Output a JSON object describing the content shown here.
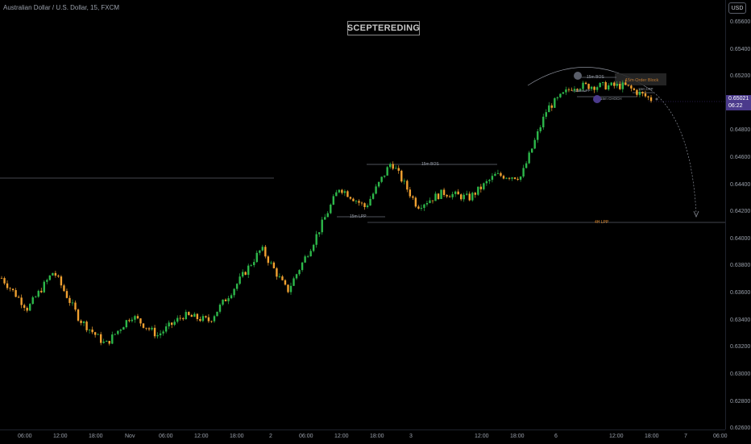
{
  "header": {
    "symbol_title": "Australian Dollar / U.S. Dollar, 15, FXCM",
    "watermark": "SCEPTEREDING",
    "currency_button": "USD"
  },
  "price_axis": {
    "ticks": [
      "0.65600",
      "0.65400",
      "0.65200",
      "0.65000",
      "0.64800",
      "0.64600",
      "0.64400",
      "0.64200",
      "0.64000",
      "0.63800",
      "0.63600",
      "0.63400",
      "0.63200",
      "0.63000",
      "0.62800",
      "0.62600"
    ],
    "current_price": "0.65021",
    "countdown": "06:22"
  },
  "time_axis": {
    "ticks": [
      "06:00",
      "12:00",
      "18:00",
      "Nov",
      "06:00",
      "12:00",
      "18:00",
      "2",
      "06:00",
      "12:00",
      "18:00",
      "3",
      "12:00",
      "18:00",
      "6",
      "12:00",
      "18:00",
      "7",
      "06:00"
    ]
  },
  "annotations": {
    "bos_middle": "15m BOS",
    "lpp_middle": "15m LPP",
    "lpp_4h": "4H LPP",
    "bos_top": "15m BOS",
    "order_block": "15m Order Block",
    "lpp_top_left": "15m LPP",
    "choch": "15m CHOCH",
    "lpp_top_right": "15m LPP"
  },
  "colors": {
    "background": "#000000",
    "up_candle": "#2db84a",
    "down_candle": "#f0a030",
    "badge": "#4b3a8c",
    "lpp_4h": "#e08a2c",
    "order_block": "#c07a30"
  },
  "chart_data": {
    "type": "candlestick",
    "y_range": [
      0.6255,
      0.6568
    ],
    "approx_close_path": [
      [
        "Oct 31 03:00",
        0.6368
      ],
      [
        "Oct 31 08:00",
        0.6345
      ],
      [
        "Oct 31 10:00",
        0.6373
      ],
      [
        "Oct 31 16:00",
        0.6337
      ],
      [
        "Oct 31 18:00",
        0.6318
      ],
      [
        "Nov 1 00:00",
        0.634
      ],
      [
        "Nov 1 06:00",
        0.6325
      ],
      [
        "Nov 1 10:00",
        0.634
      ],
      [
        "Nov 1 16:00",
        0.6336
      ],
      [
        "Nov 1 20:00",
        0.6362
      ],
      [
        "Nov 1 22:00",
        0.639
      ],
      [
        "Nov 2 00:00",
        0.6358
      ],
      [
        "Nov 2 04:00",
        0.6395
      ],
      [
        "Nov 2 08:00",
        0.6436
      ],
      [
        "Nov 2 12:00",
        0.6421
      ],
      [
        "Nov 2 16:00",
        0.6455
      ],
      [
        "Nov 2 20:00",
        0.6422
      ],
      [
        "Nov 3 02:00",
        0.6432
      ],
      [
        "Nov 3 08:00",
        0.6428
      ],
      [
        "Nov 3 14:00",
        0.6445
      ],
      [
        "Nov 3 18:00",
        0.6444
      ],
      [
        "Nov 3 19:00",
        0.6495
      ],
      [
        "Nov 6 00:00",
        0.6512
      ],
      [
        "Nov 6 06:00",
        0.6512
      ],
      [
        "Nov 6 12:00",
        0.6512
      ],
      [
        "Nov 6 16:00",
        0.6502
      ]
    ]
  }
}
